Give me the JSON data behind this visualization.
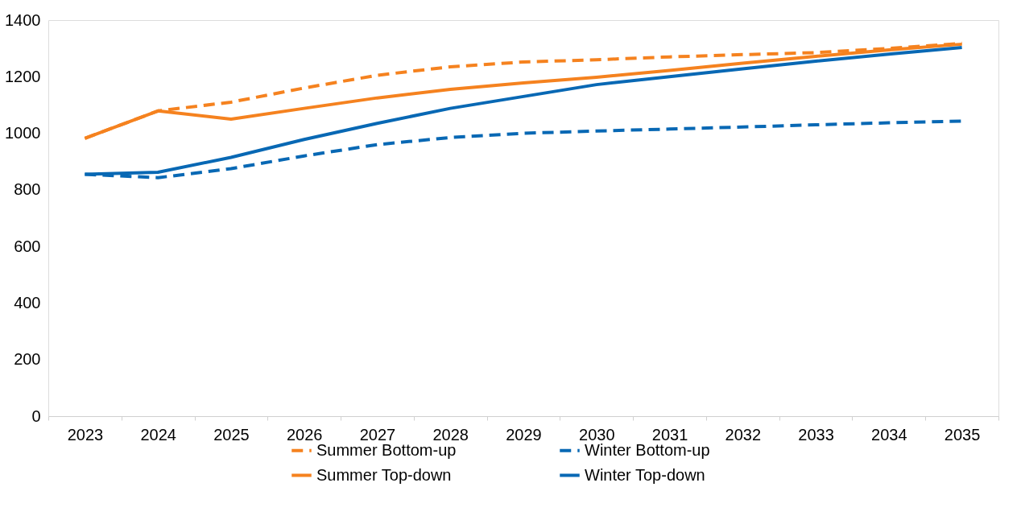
{
  "chart_data": {
    "type": "line",
    "categories": [
      "2023",
      "2024",
      "2025",
      "2026",
      "2027",
      "2028",
      "2029",
      "2030",
      "2031",
      "2032",
      "2033",
      "2034",
      "2035"
    ],
    "series": [
      {
        "name": "Summer Bottom-up",
        "color": "#f5821f",
        "line_style": "dashed",
        "values": [
          982,
          1079,
          1110,
          1160,
          1205,
          1235,
          1252,
          1260,
          1270,
          1278,
          1285,
          1300,
          1318
        ]
      },
      {
        "name": "Summer Top-down",
        "color": "#f5821f",
        "line_style": "solid",
        "values": [
          982,
          1079,
          1050,
          1088,
          1125,
          1155,
          1178,
          1198,
          1222,
          1248,
          1272,
          1295,
          1315
        ]
      },
      {
        "name": "Winter Bottom-up",
        "color": "#0868b4",
        "line_style": "dashed",
        "values": [
          855,
          843,
          875,
          920,
          960,
          985,
          1000,
          1008,
          1015,
          1022,
          1030,
          1037,
          1043
        ]
      },
      {
        "name": "Winter Top-down",
        "color": "#0868b4",
        "line_style": "solid",
        "values": [
          855,
          862,
          915,
          978,
          1035,
          1088,
          1130,
          1172,
          1200,
          1228,
          1255,
          1280,
          1303
        ]
      }
    ],
    "ylim": [
      0,
      1400
    ],
    "yticks": [
      0,
      200,
      400,
      600,
      800,
      1000,
      1200,
      1400
    ],
    "legend": "bottom",
    "grid": false,
    "marker": "none"
  }
}
